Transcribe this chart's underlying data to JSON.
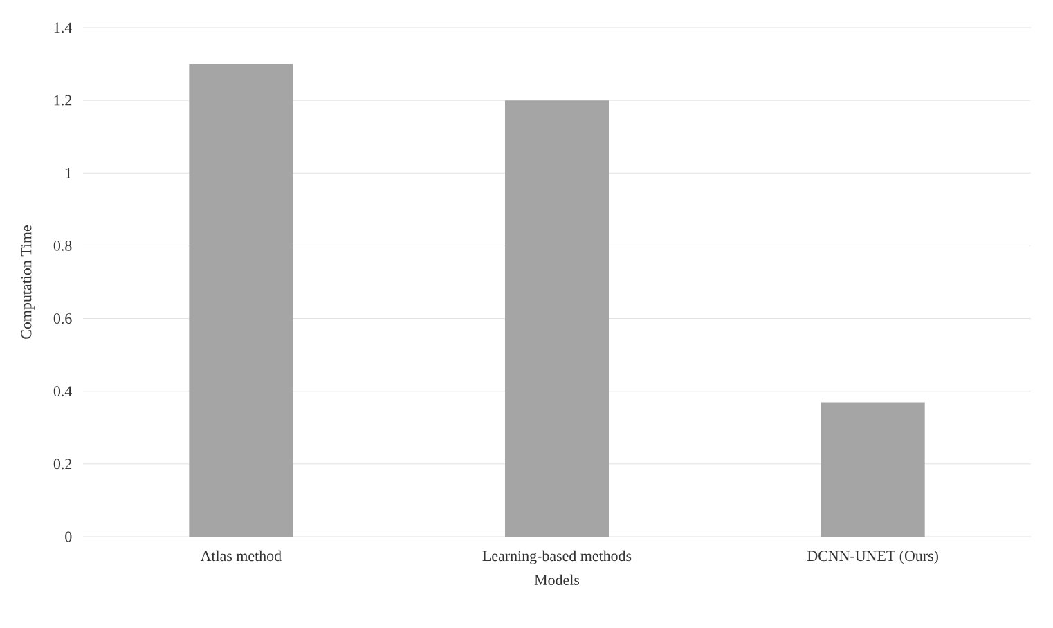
{
  "chart_data": {
    "type": "bar",
    "xlabel": "Models",
    "ylabel": "Computation Time",
    "categories": [
      "Atlas method",
      "Learning-based methods",
      "DCNN-UNET (Ours)"
    ],
    "values": [
      1.3,
      1.2,
      0.37
    ],
    "color": "#a5a5a5",
    "ylim": [
      0,
      1.4
    ],
    "yticks": [
      0,
      0.2,
      0.4,
      0.6,
      0.8,
      1,
      1.2,
      1.4
    ],
    "grid": "y"
  }
}
